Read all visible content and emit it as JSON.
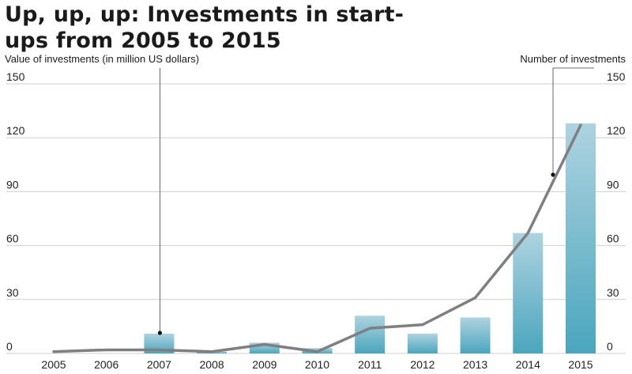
{
  "title": "Up, up, up: Investments in start-ups from 2005 to 2015",
  "chart_data": {
    "type": "bar+line",
    "title": "Up, up, up: Investments in start-ups from 2005 to 2015",
    "categories": [
      "2005",
      "2006",
      "2007",
      "2008",
      "2009",
      "2010",
      "2011",
      "2012",
      "2013",
      "2014",
      "2015"
    ],
    "y_left_label": "Value of investments (in million US dollars)",
    "y_right_label": "Number of investments",
    "ylim": [
      0,
      150
    ],
    "y_ticks": [
      0,
      30,
      60,
      90,
      120,
      150
    ],
    "grid": true,
    "series": [
      {
        "type": "bar",
        "axis": "left",
        "values": [
          0,
          0,
          11,
          1,
          6,
          3,
          21,
          11,
          20,
          67,
          128
        ]
      },
      {
        "type": "line",
        "axis": "right",
        "values": [
          1,
          2,
          2,
          1,
          5,
          1,
          14,
          16,
          31,
          67,
          127
        ]
      }
    ],
    "colors": {
      "bar_top": "#aed3e0",
      "bar_bottom": "#4aa6bd",
      "line": "#7f7f7f",
      "grid": "#cfcfcf"
    }
  }
}
